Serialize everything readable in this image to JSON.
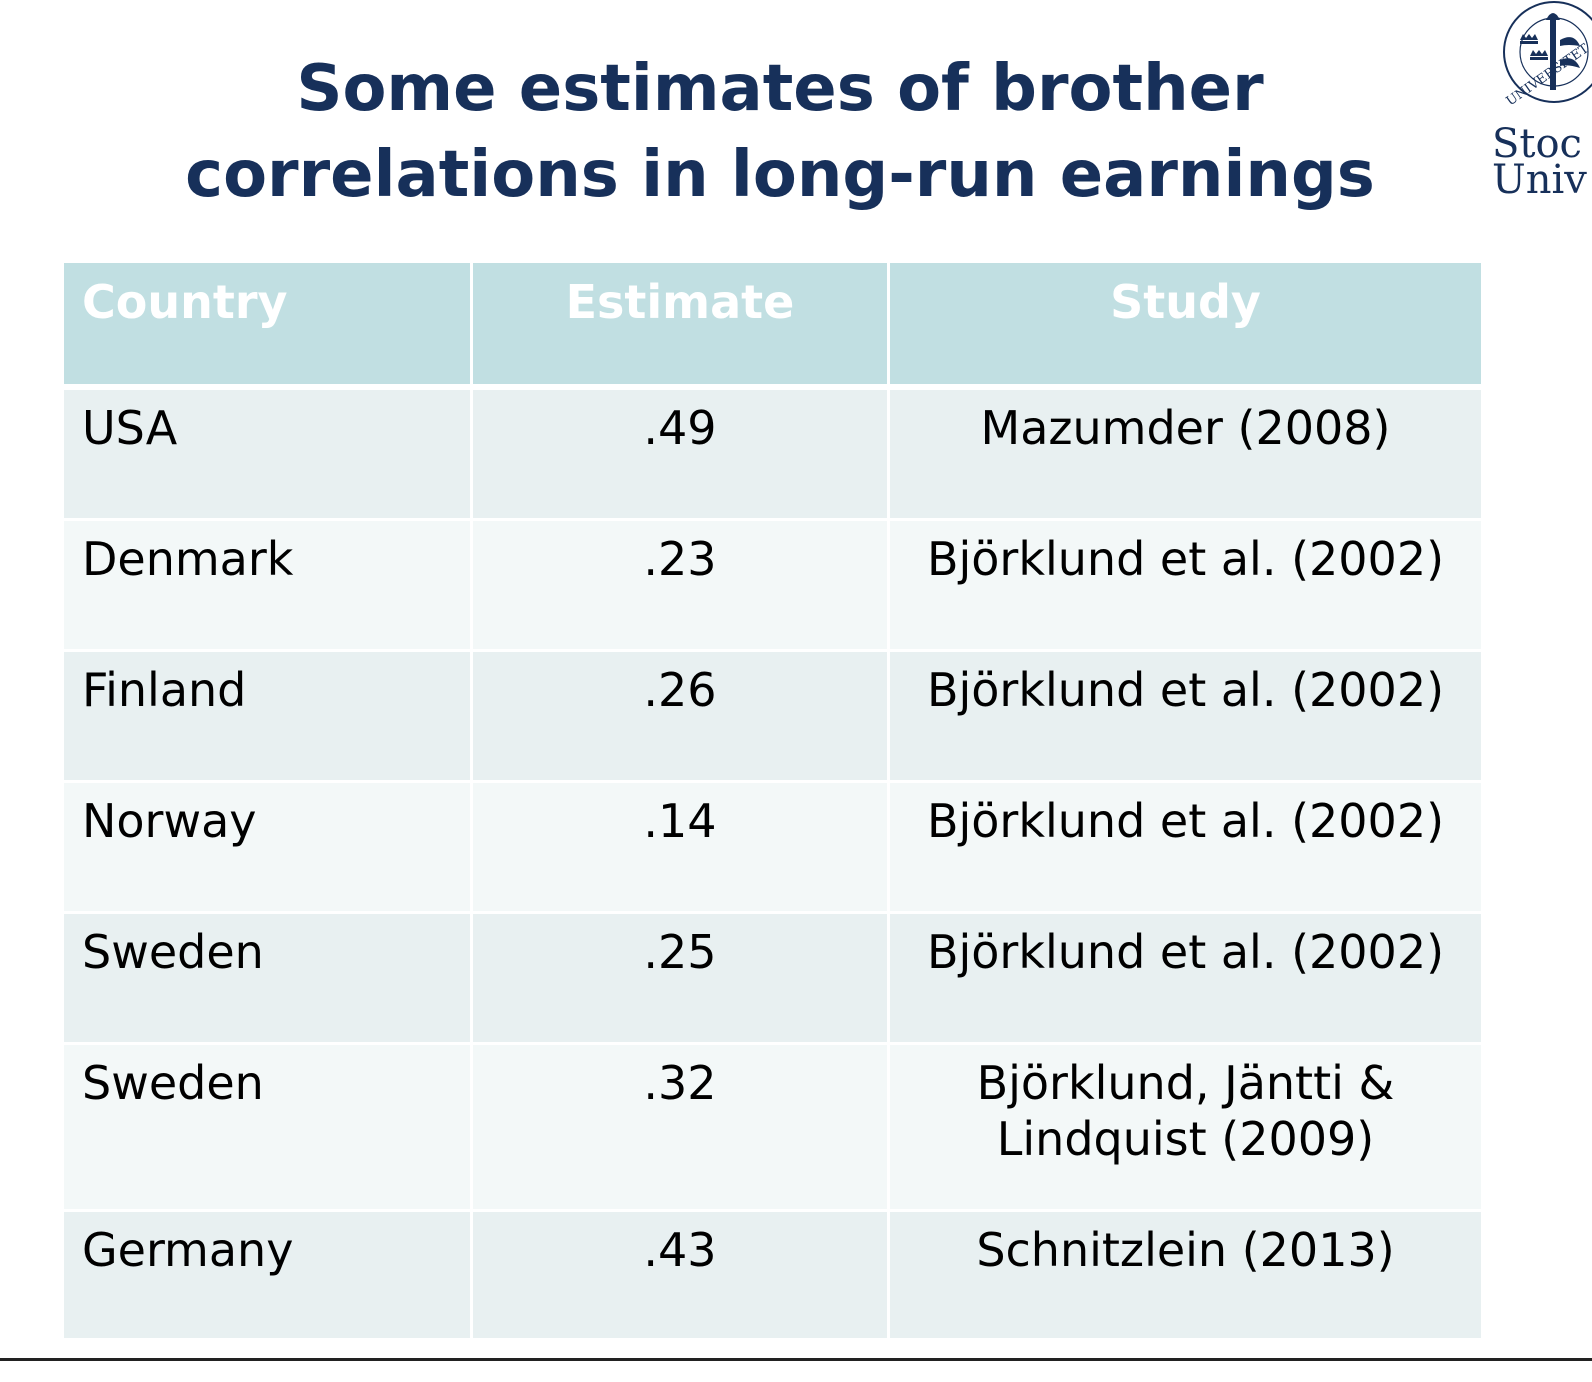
{
  "title": {
    "line1": "Some estimates of brother",
    "line2": "correlations in long-run earnings"
  },
  "logo": {
    "arc_text": "UNIVERSITET",
    "line1": "Stoc",
    "line2": "Univ",
    "icon": "university-seal-icon"
  },
  "colors": {
    "title": "#17305a",
    "header_bg": "#c1dfe2",
    "row_odd": "#e8f0f1",
    "row_even": "#f3f8f8"
  },
  "table": {
    "headers": {
      "country": "Country",
      "estimate": "Estimate",
      "study": "Study"
    },
    "rows": [
      {
        "country": "USA",
        "estimate": ".49",
        "study": "Mazumder (2008)"
      },
      {
        "country": "Denmark",
        "estimate": ".23",
        "study": "Björklund et al. (2002)"
      },
      {
        "country": "Finland",
        "estimate": ".26",
        "study": "Björklund et al. (2002)"
      },
      {
        "country": "Norway",
        "estimate": ".14",
        "study": "Björklund et al. (2002)"
      },
      {
        "country": "Sweden",
        "estimate": ".25",
        "study": "Björklund et al. (2002)"
      },
      {
        "country": "Sweden",
        "estimate": ".32",
        "study_line1": "Björklund, Jäntti &",
        "study_line2": "Lindquist (2009)"
      },
      {
        "country": "Germany",
        "estimate": ".43",
        "study": "Schnitzlein (2013)"
      }
    ]
  }
}
